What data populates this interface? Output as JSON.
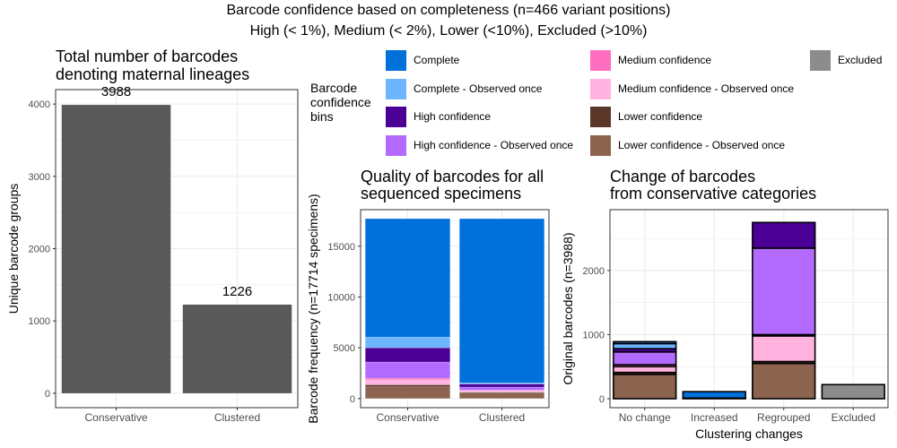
{
  "figure": {
    "title_line1": "Barcode confidence based on completeness (n=466 variant positions)",
    "title_line2": "High (< 1%), Medium (< 2%), Lower (<10%), Excluded (>10%)"
  },
  "colors": {
    "Complete": "#0070DB",
    "Complete - Observed once": "#6EB5FF",
    "High confidence": "#4B0096",
    "High confidence - Observed once": "#B36BFF",
    "Medium confidence": "#FF6EBE",
    "Medium confidence - Observed once": "#FFB3DE",
    "Lower confidence": "#5A3728",
    "Lower confidence - Observed once": "#8C6450",
    "Excluded": "#8C8C8C",
    "grey_bar": "#595959",
    "panel_grid": "#EBEBEB"
  },
  "legend": {
    "title_lines": [
      "Barcode",
      "confidence",
      "bins"
    ],
    "entries": [
      "Complete",
      "Complete - Observed once",
      "High confidence",
      "High confidence - Observed once",
      "Medium confidence",
      "Medium confidence - Observed once",
      "Lower confidence",
      "Lower confidence - Observed once",
      "Excluded"
    ]
  },
  "chart_data": [
    {
      "id": "panel-a",
      "type": "bar",
      "title_lines": [
        "Total number of barcodes",
        "denoting maternal lineages"
      ],
      "xlabel": "",
      "ylabel": "Unique barcode groups",
      "categories": [
        "Conservative",
        "Clustered"
      ],
      "values": [
        3988,
        1226
      ],
      "data_labels": [
        "3988",
        "1226"
      ],
      "ylim": [
        -200,
        4200
      ],
      "yticks": [
        0,
        1000,
        2000,
        3000,
        4000
      ],
      "ytick_labels": [
        "0",
        "1000",
        "2000",
        "3000",
        "4000"
      ],
      "grid": true
    },
    {
      "id": "panel-b",
      "type": "bar",
      "stacked": true,
      "title_lines": [
        "Quality of barcodes for all",
        "sequenced specimens"
      ],
      "xlabel": "",
      "ylabel": "Barcode frequency (n=17714 specimens)",
      "categories": [
        "Conservative",
        "Clustered"
      ],
      "ylim": [
        -900,
        18600
      ],
      "yticks": [
        0,
        5000,
        10000,
        15000
      ],
      "ytick_labels": [
        "0",
        "5000",
        "10000",
        "15000"
      ],
      "grid": true,
      "series": [
        {
          "name": "Lower confidence - Observed once",
          "values": [
            1150,
            550
          ]
        },
        {
          "name": "Lower confidence",
          "values": [
            200,
            80
          ]
        },
        {
          "name": "Medium confidence - Observed once",
          "values": [
            500,
            150
          ]
        },
        {
          "name": "Medium confidence",
          "values": [
            150,
            50
          ]
        },
        {
          "name": "High confidence - Observed once",
          "values": [
            1600,
            300
          ]
        },
        {
          "name": "High confidence",
          "values": [
            1400,
            300
          ]
        },
        {
          "name": "Complete - Observed once",
          "values": [
            1050,
            120
          ]
        },
        {
          "name": "Complete",
          "values": [
            11664,
            16164
          ]
        }
      ]
    },
    {
      "id": "panel-c",
      "type": "bar",
      "stacked": true,
      "title_lines": [
        "Change of barcodes",
        "from conservative categories"
      ],
      "xlabel": "Clustering changes",
      "ylabel": "Original barcodes (n=3988)",
      "categories": [
        "No change",
        "Increased",
        "Regrouped",
        "Excluded"
      ],
      "ylim": [
        -140,
        2950
      ],
      "yticks": [
        0,
        1000,
        2000
      ],
      "ytick_labels": [
        "0",
        "1000",
        "2000"
      ],
      "grid": true,
      "series": [
        {
          "name": "Lower confidence - Observed once",
          "values": [
            380,
            0,
            550,
            0
          ]
        },
        {
          "name": "Lower confidence",
          "values": [
            30,
            0,
            30,
            0
          ]
        },
        {
          "name": "Medium confidence - Observed once",
          "values": [
            90,
            0,
            400,
            0
          ]
        },
        {
          "name": "Medium confidence",
          "values": [
            30,
            0,
            20,
            0
          ]
        },
        {
          "name": "High confidence - Observed once",
          "values": [
            200,
            0,
            1350,
            0
          ]
        },
        {
          "name": "High confidence",
          "values": [
            50,
            0,
            400,
            0
          ]
        },
        {
          "name": "Complete - Observed once",
          "values": [
            80,
            10,
            0,
            0
          ]
        },
        {
          "name": "Complete",
          "values": [
            30,
            100,
            0,
            0
          ]
        },
        {
          "name": "Excluded",
          "values": [
            0,
            0,
            0,
            220
          ]
        }
      ]
    }
  ]
}
